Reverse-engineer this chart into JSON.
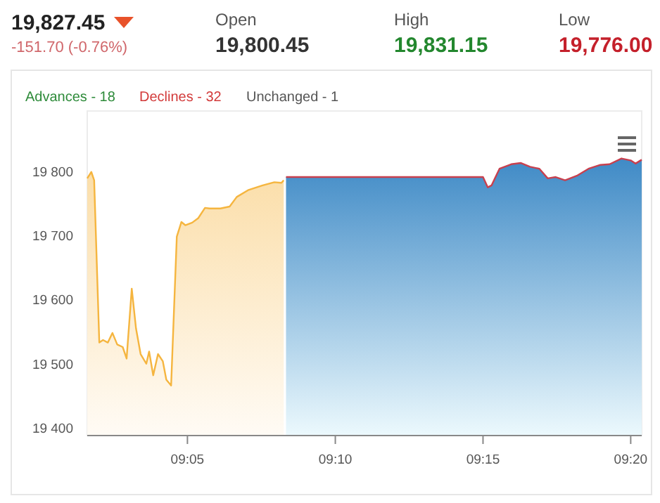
{
  "chart_data": {
    "type": "area",
    "annotations": [
      "19,827.45",
      "-151.70 (-0.76%)",
      "Open",
      "19,800.45",
      "High",
      "19,831.15",
      "Low",
      "19,776.00",
      "Advances - 18",
      "Declines - 32",
      "Unchanged - 1"
    ],
    "series": [
      {
        "color": "#f5b53f",
        "x": [
          9.0268,
          9.0291,
          9.0307,
          9.0336,
          9.0357,
          9.0384,
          9.041,
          9.0437,
          9.0468,
          9.049,
          9.0519,
          9.0543,
          9.0569,
          9.0601,
          9.0617,
          9.064,
          9.0667,
          9.0694,
          9.0714,
          9.0741,
          9.0773,
          9.0799,
          9.0821,
          9.086,
          9.0894,
          9.0932,
          9.0958,
          9.1019,
          9.1071,
          9.1111,
          9.1178,
          9.1257,
          9.1323,
          9.1363,
          9.1376
        ],
        "values": [
          19789,
          19799,
          19786,
          19533,
          19537,
          19533,
          19548,
          19530,
          19526,
          19508,
          19617,
          19555,
          19515,
          19500,
          19519,
          19482,
          19515,
          19504,
          19475,
          19466,
          19698,
          19721,
          19716,
          19720,
          19727,
          19743,
          19742,
          19742,
          19745,
          19760,
          19771,
          19778,
          19783,
          19782,
          19786
        ]
      },
      {
        "color": "#3f8ac6",
        "x": [
          9.1389,
          9.25,
          9.2527,
          9.2548,
          9.2593,
          9.2659,
          9.2712,
          9.2765,
          9.2818,
          9.2865,
          9.291,
          9.2963,
          9.3029,
          9.3095,
          9.3162,
          9.3214,
          9.3281,
          9.3333,
          9.336,
          9.3395
        ],
        "values": [
          19791,
          19791,
          19775,
          19778,
          19804,
          19811,
          19813,
          19807,
          19804,
          19789,
          19791,
          19786,
          19793,
          19804,
          19810,
          19811,
          19820,
          19817,
          19812,
          19818
        ]
      }
    ],
    "xlim": [
      9.0268,
      9.3395
    ],
    "xticks": [
      {
        "value": 9.0833,
        "label": "09:05"
      },
      {
        "value": 9.1667,
        "label": "09:10"
      },
      {
        "value": 9.25,
        "label": "09:15"
      },
      {
        "value": 9.3333,
        "label": "09:20"
      }
    ],
    "ylim": [
      19388,
      19894
    ],
    "yticks": [
      {
        "value": 19400,
        "label": "19 400"
      },
      {
        "value": 19500,
        "label": "19 500"
      },
      {
        "value": 19600,
        "label": "19 600"
      },
      {
        "value": 19700,
        "label": "19 700"
      },
      {
        "value": 19800,
        "label": "19 800"
      }
    ],
    "grid": false
  }
}
